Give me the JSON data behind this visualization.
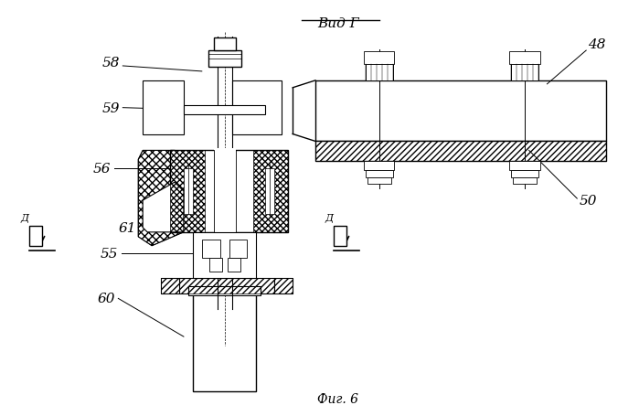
{
  "title": "Вид Г",
  "fig_label": "Фиг. 6",
  "bg_color": "#ffffff",
  "line_color": "#000000"
}
